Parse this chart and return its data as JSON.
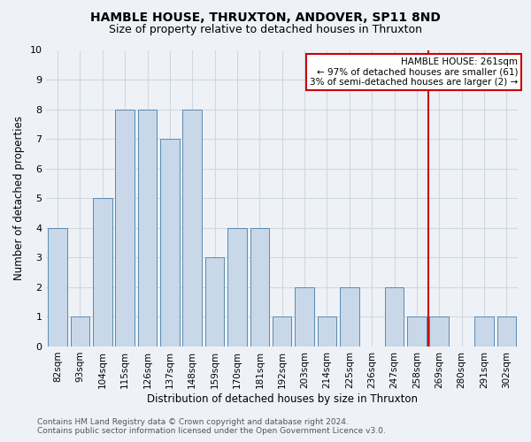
{
  "title": "HAMBLE HOUSE, THRUXTON, ANDOVER, SP11 8ND",
  "subtitle": "Size of property relative to detached houses in Thruxton",
  "xlabel": "Distribution of detached houses by size in Thruxton",
  "ylabel": "Number of detached properties",
  "footer_line1": "Contains HM Land Registry data © Crown copyright and database right 2024.",
  "footer_line2": "Contains public sector information licensed under the Open Government Licence v3.0.",
  "categories": [
    "82sqm",
    "93sqm",
    "104sqm",
    "115sqm",
    "126sqm",
    "137sqm",
    "148sqm",
    "159sqm",
    "170sqm",
    "181sqm",
    "192sqm",
    "203sqm",
    "214sqm",
    "225sqm",
    "236sqm",
    "247sqm",
    "258sqm",
    "269sqm",
    "280sqm",
    "291sqm",
    "302sqm"
  ],
  "values": [
    4,
    1,
    5,
    8,
    8,
    7,
    8,
    3,
    4,
    4,
    1,
    2,
    1,
    2,
    0,
    2,
    1,
    1,
    0,
    1,
    1
  ],
  "bar_color": "#c8d8e8",
  "bar_edgecolor": "#5a8ab0",
  "ylim": [
    0,
    10
  ],
  "yticks": [
    0,
    1,
    2,
    3,
    4,
    5,
    6,
    7,
    8,
    9,
    10
  ],
  "property_label": "HAMBLE HOUSE: 261sqm",
  "annotation_line1": "← 97% of detached houses are smaller (61)",
  "annotation_line2": "3% of semi-detached houses are larger (2) →",
  "vline_color": "#cc0000",
  "annotation_box_color": "#cc0000",
  "grid_color": "#d0d8e0",
  "background_color": "#eef2f7",
  "title_fontsize": 10,
  "subtitle_fontsize": 9
}
